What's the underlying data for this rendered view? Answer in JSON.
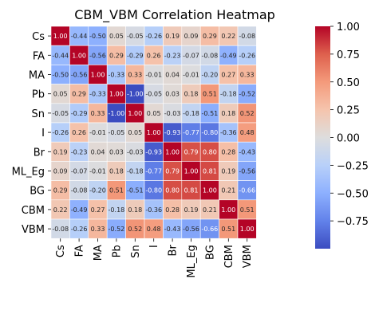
{
  "chart_data": {
    "type": "heatmap",
    "title": "CBM_VBM Correlation Heatmap",
    "xlabel": "",
    "ylabel": "",
    "labels": [
      "Cs",
      "FA",
      "MA",
      "Pb",
      "Sn",
      "I",
      "Br",
      "ML_Eg",
      "BG",
      "CBM",
      "VBM"
    ],
    "matrix": [
      [
        1.0,
        -0.44,
        -0.5,
        0.05,
        -0.05,
        -0.26,
        0.19,
        0.09,
        0.29,
        0.22,
        -0.08
      ],
      [
        -0.44,
        1.0,
        -0.56,
        0.29,
        -0.29,
        0.26,
        -0.23,
        -0.07,
        -0.08,
        -0.49,
        -0.26
      ],
      [
        -0.5,
        -0.56,
        1.0,
        -0.33,
        0.33,
        -0.01,
        0.04,
        -0.01,
        -0.2,
        0.27,
        0.33
      ],
      [
        0.05,
        0.29,
        -0.33,
        1.0,
        -1.0,
        -0.05,
        0.03,
        0.18,
        0.51,
        -0.18,
        -0.52
      ],
      [
        -0.05,
        -0.29,
        0.33,
        -1.0,
        1.0,
        0.05,
        -0.03,
        -0.18,
        -0.51,
        0.18,
        0.52
      ],
      [
        -0.26,
        0.26,
        -0.01,
        -0.05,
        0.05,
        1.0,
        -0.93,
        -0.77,
        -0.8,
        -0.36,
        0.48
      ],
      [
        0.19,
        -0.23,
        0.04,
        0.03,
        -0.03,
        -0.93,
        1.0,
        0.79,
        0.8,
        0.28,
        -0.43
      ],
      [
        0.09,
        -0.07,
        -0.01,
        0.18,
        -0.18,
        -0.77,
        0.79,
        1.0,
        0.81,
        0.19,
        -0.56
      ],
      [
        0.29,
        -0.08,
        -0.2,
        0.51,
        -0.51,
        -0.8,
        0.8,
        0.81,
        1.0,
        0.21,
        -0.66
      ],
      [
        0.22,
        -0.49,
        0.27,
        -0.18,
        0.18,
        -0.36,
        0.28,
        0.19,
        0.21,
        1.0,
        0.51
      ],
      [
        -0.08,
        -0.26,
        0.33,
        -0.52,
        0.52,
        0.48,
        -0.43,
        -0.56,
        -0.66,
        0.51,
        1.0
      ]
    ],
    "colormap": "coolwarm",
    "vmin": -1.0,
    "vmax": 1.0,
    "colorbar_ticks": [
      1.0,
      0.75,
      0.5,
      0.25,
      0.0,
      -0.25,
      -0.5,
      -0.75
    ],
    "colorbar_tick_labels": [
      "1.00",
      "0.75",
      "0.50",
      "0.25",
      "0.00",
      "−0.25",
      "−0.50",
      "−0.75"
    ],
    "annotation_format": "0.00",
    "colors": {
      "low": "#3b4cc0",
      "mid": "#dddddd",
      "high": "#b40426",
      "grid_line": "#ffffff"
    }
  }
}
